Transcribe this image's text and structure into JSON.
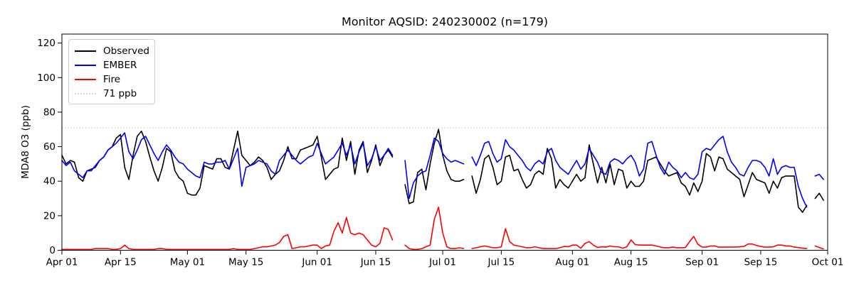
{
  "chart_data": {
    "type": "line",
    "title": "Monitor AQSID: 240230002 (n=179)",
    "n_points": 179,
    "xlabel": "",
    "ylabel": "MDA8 O3 (ppb)",
    "grid": false,
    "background": "#ffffff",
    "ylim": [
      0,
      125
    ],
    "y_ticks": [
      0,
      20,
      40,
      60,
      80,
      100,
      120
    ],
    "x_axis_start": "Apr 01",
    "x_axis_end": "Oct 01",
    "days_total": 183,
    "x_ticks": [
      {
        "day": 0,
        "label": "Apr 01"
      },
      {
        "day": 14,
        "label": "Apr 15"
      },
      {
        "day": 30,
        "label": "May 01"
      },
      {
        "day": 44,
        "label": "May 15"
      },
      {
        "day": 61,
        "label": "Jun 01"
      },
      {
        "day": 75,
        "label": "Jun 15"
      },
      {
        "day": 91,
        "label": "Jul 01"
      },
      {
        "day": 105,
        "label": "Jul 15"
      },
      {
        "day": 122,
        "label": "Aug 01"
      },
      {
        "day": 136,
        "label": "Aug 15"
      },
      {
        "day": 153,
        "label": "Sep 01"
      },
      {
        "day": 167,
        "label": "Sep 15"
      },
      {
        "day": 183,
        "label": "Oct 01"
      }
    ],
    "threshold_line": {
      "value": 71,
      "label": "71 ppb",
      "color": "#d3d3d3",
      "style": "dotted"
    },
    "legend": {
      "position": "upper left",
      "items": [
        {
          "label": "Observed",
          "color": "#000000",
          "style": "solid"
        },
        {
          "label": "EMBER",
          "color": "#0000ff",
          "style": "solid"
        },
        {
          "label": "Fire",
          "color": "#ff0000",
          "style": "solid"
        },
        {
          "label": "71 ppb",
          "color": "#d3d3d3",
          "style": "dotted"
        }
      ]
    },
    "series": [
      {
        "name": "Observed",
        "color": "#000000",
        "style": "solid",
        "values": [
          55,
          50,
          52,
          51,
          42,
          40,
          46,
          47,
          48,
          52,
          54,
          58,
          60,
          65,
          67,
          48,
          41,
          55,
          66,
          69,
          63,
          54,
          46,
          40,
          48,
          59,
          57,
          46,
          42,
          40,
          33,
          32,
          32,
          36,
          49,
          48,
          47,
          53,
          53,
          48,
          47,
          58,
          69,
          55,
          52,
          49,
          51,
          54,
          52,
          48,
          41,
          44,
          46,
          52,
          60,
          53,
          53,
          58,
          59,
          60,
          61,
          66,
          54,
          41,
          44,
          47,
          48,
          65,
          52,
          63,
          44,
          58,
          63,
          45,
          52,
          61,
          49,
          55,
          58,
          54,
          null,
          null,
          38,
          27,
          28,
          45,
          47,
          35,
          50,
          62,
          70,
          55,
          46,
          41,
          40,
          40,
          41,
          null,
          43,
          33,
          41,
          53,
          55,
          48,
          38,
          40,
          54,
          55,
          46,
          47,
          41,
          36,
          38,
          44,
          46,
          44,
          59,
          53,
          36,
          41,
          38,
          36,
          40,
          44,
          40,
          42,
          61,
          50,
          39,
          48,
          39,
          50,
          38,
          47,
          46,
          36,
          40,
          37,
          37,
          40,
          52,
          53,
          54,
          50,
          46,
          43,
          44,
          45,
          39,
          37,
          32,
          39,
          34,
          40,
          56,
          54,
          46,
          54,
          53,
          47,
          45,
          43,
          41,
          31,
          38,
          45,
          41,
          40,
          39,
          33,
          40,
          36,
          42,
          43,
          43,
          43,
          25,
          22,
          26,
          null,
          30,
          33,
          29
        ]
      },
      {
        "name": "EMBER",
        "color": "#0000ff",
        "style": "solid",
        "values": [
          52,
          49,
          51,
          46,
          44,
          42,
          46,
          46,
          49,
          52,
          54,
          58,
          60,
          62,
          65,
          68,
          57,
          53,
          58,
          64,
          66,
          61,
          56,
          52,
          57,
          61,
          58,
          54,
          51,
          50,
          47,
          45,
          43,
          42,
          51,
          50,
          50,
          51,
          51,
          52,
          47,
          53,
          59,
          37,
          48,
          49,
          50,
          52,
          51,
          50,
          46,
          44,
          52,
          55,
          58,
          55,
          52,
          50,
          52,
          54,
          55,
          62,
          56,
          50,
          52,
          54,
          58,
          62,
          55,
          61,
          50,
          57,
          62,
          49,
          53,
          60,
          52,
          55,
          59,
          55,
          null,
          null,
          52,
          30,
          39,
          43,
          45,
          46,
          55,
          65,
          63,
          56,
          53,
          51,
          52,
          51,
          50,
          null,
          54,
          49,
          55,
          62,
          63,
          56,
          51,
          53,
          64,
          60,
          58,
          55,
          52,
          48,
          46,
          50,
          52,
          50,
          57,
          59,
          52,
          48,
          46,
          44,
          48,
          52,
          47,
          50,
          59,
          55,
          51,
          45,
          44,
          51,
          53,
          52,
          50,
          53,
          55,
          51,
          43,
          47,
          62,
          63,
          55,
          48,
          44,
          51,
          48,
          46,
          42,
          45,
          42,
          41,
          44,
          57,
          59,
          58,
          61,
          64,
          66,
          57,
          51,
          48,
          44,
          43,
          48,
          52,
          52,
          51,
          48,
          43,
          53,
          44,
          48,
          49,
          48,
          48,
          37,
          30,
          25,
          null,
          43,
          44,
          41
        ]
      },
      {
        "name": "Fire",
        "color": "#ff0000",
        "style": "solid",
        "values": [
          0.5,
          0.5,
          0.5,
          0.5,
          0.5,
          0.5,
          0.5,
          0.5,
          1,
          1,
          1,
          1,
          0.5,
          0.5,
          1,
          3,
          1,
          0.5,
          0.5,
          0.5,
          0.5,
          0.5,
          0.5,
          1,
          1,
          0.5,
          0.5,
          0.5,
          0.5,
          0.5,
          0.5,
          0.5,
          0.5,
          0.5,
          0.5,
          0.5,
          0.5,
          0.5,
          0.5,
          0.5,
          0.5,
          1,
          0.5,
          0.5,
          0.5,
          0.5,
          1,
          1.5,
          2,
          2,
          2.5,
          3,
          4.5,
          8,
          9,
          1,
          1.5,
          2,
          2,
          2.5,
          3,
          3,
          1,
          2.5,
          3,
          11,
          16,
          10,
          19,
          10,
          9,
          10,
          9,
          6,
          3,
          2,
          4,
          13,
          12,
          6,
          null,
          null,
          3,
          1,
          0.5,
          0.5,
          1,
          2,
          3,
          18,
          25,
          10,
          2,
          1,
          1,
          1.5,
          1,
          null,
          1,
          1.5,
          2,
          2.5,
          2,
          1.5,
          1.5,
          2,
          12.5,
          5,
          3,
          2.5,
          2,
          1.5,
          1.5,
          2,
          1.5,
          1,
          1,
          1,
          1,
          1.5,
          2.2,
          2,
          3,
          3,
          1.2,
          4,
          5,
          3,
          1.6,
          2,
          1.8,
          2.5,
          2,
          2,
          1.2,
          2,
          6,
          3.3,
          3,
          3,
          3,
          3,
          2.5,
          1.9,
          1.5,
          1.5,
          1.9,
          1.5,
          1.5,
          1.6,
          5,
          8,
          3.4,
          1.9,
          1.8,
          2.5,
          2.5,
          1.8,
          1.8,
          1.9,
          1.9,
          1.9,
          2,
          2.2,
          3.6,
          3.6,
          2.8,
          2.2,
          1.8,
          1.8,
          2,
          3,
          3,
          2.5,
          2.5,
          1.8,
          1.6,
          1.2,
          1,
          null,
          2.5,
          1.6,
          0.8
        ]
      }
    ]
  }
}
